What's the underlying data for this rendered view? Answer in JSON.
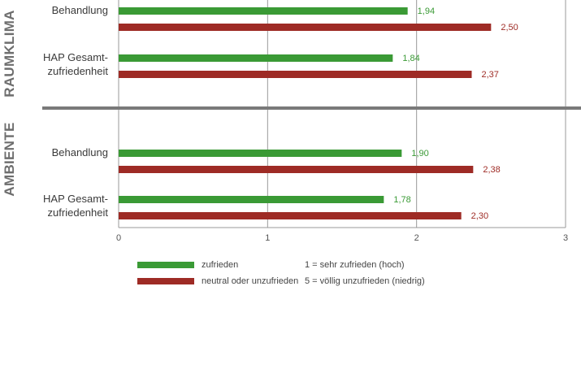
{
  "colors": {
    "satisfied": "#3a9a35",
    "neutral": "#9e2b25",
    "grid": "#9a9a9a",
    "divider": "#7a7a7a",
    "section": "#6e6e6e"
  },
  "chart_data": {
    "type": "bar",
    "orientation": "horizontal",
    "xlim": [
      0,
      3
    ],
    "x_ticks": [
      "0",
      "1",
      "2",
      "3"
    ],
    "sections": [
      {
        "name": "RAUMKLIMA",
        "groups": [
          {
            "label_lines": [
              "Behandlung"
            ],
            "values": [
              {
                "series": "zufrieden",
                "value": 1.94,
                "label": "1,94"
              },
              {
                "series": "neutral oder unzufrieden",
                "value": 2.5,
                "label": "2,50"
              }
            ]
          },
          {
            "label_lines": [
              "HAP Gesamt-",
              "zufriedenheit"
            ],
            "values": [
              {
                "series": "zufrieden",
                "value": 1.84,
                "label": "1,84"
              },
              {
                "series": "neutral oder unzufrieden",
                "value": 2.37,
                "label": "2,37"
              }
            ]
          }
        ]
      },
      {
        "name": "AMBIENTE",
        "groups": [
          {
            "label_lines": [
              "Behandlung"
            ],
            "values": [
              {
                "series": "zufrieden",
                "value": 1.9,
                "label": "1,90"
              },
              {
                "series": "neutral oder unzufrieden",
                "value": 2.38,
                "label": "2,38"
              }
            ]
          },
          {
            "label_lines": [
              "HAP Gesamt-",
              "zufriedenheit"
            ],
            "values": [
              {
                "series": "zufrieden",
                "value": 1.78,
                "label": "1,78"
              },
              {
                "series": "neutral oder unzufrieden",
                "value": 2.3,
                "label": "2,30"
              }
            ]
          }
        ]
      }
    ],
    "series": [
      {
        "name": "zufrieden"
      },
      {
        "name": "neutral oder unzufrieden"
      }
    ]
  },
  "legend": {
    "satisfied_label": "zufrieden",
    "neutral_label": "neutral oder unzufrieden",
    "scale_top": "1 = sehr zufrieden (hoch)",
    "scale_bottom": "5 = völlig unzufrieden (niedrig)"
  }
}
